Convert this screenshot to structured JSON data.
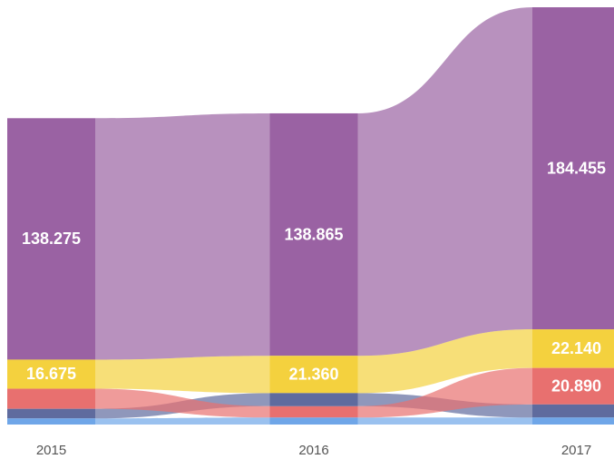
{
  "chart_data": {
    "type": "ribbon",
    "categories": [
      "2015",
      "2016",
      "2017"
    ],
    "series": [
      {
        "color": "#9a62a3",
        "values": [
          138.275,
          138.865,
          184.455
        ],
        "value_labels": [
          "138.275",
          "138.865",
          "184.455"
        ]
      },
      {
        "color": "#f4d13e",
        "values": [
          16.675,
          21.36,
          22.14
        ],
        "value_labels": [
          "16.675",
          "21.360",
          "22.140"
        ]
      },
      {
        "color": "#e8706f",
        "values": [
          11.5,
          6.5,
          20.89
        ],
        "value_labels": [
          null,
          null,
          "20.890"
        ]
      },
      {
        "color": "#5f6b9e",
        "values": [
          5.5,
          7.5,
          7.5
        ]
      },
      {
        "color": "#6fa6e8",
        "values": [
          3.5,
          4,
          4
        ]
      }
    ]
  }
}
